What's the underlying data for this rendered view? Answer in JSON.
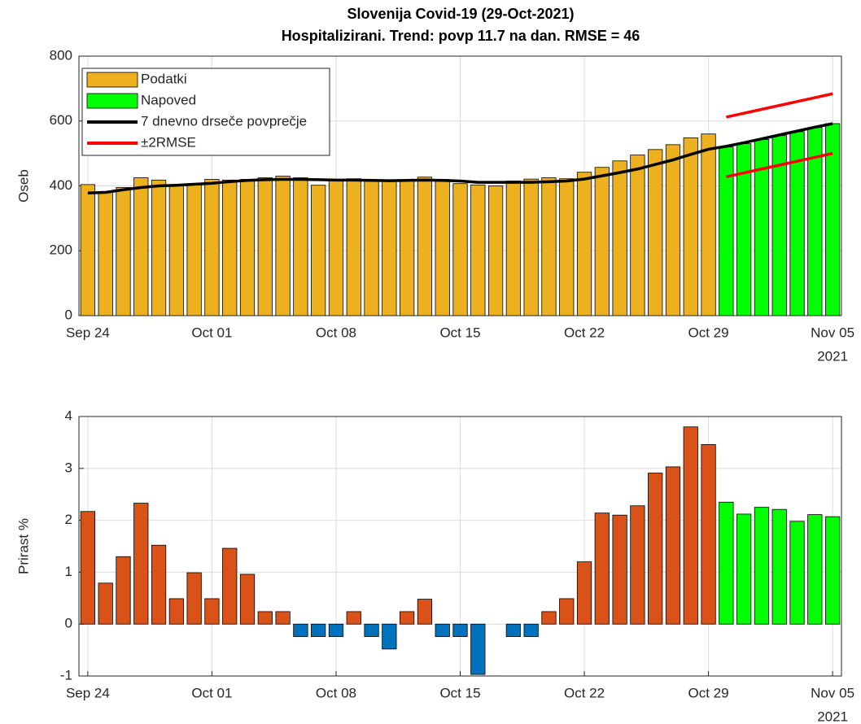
{
  "chart_data": [
    {
      "type": "bar",
      "title": "Slovenija Covid-19 (29-Oct-2021)",
      "subtitle": "Hospitalizirani. Trend: povp 11.7 na dan. RMSE = 46",
      "y_label": "Oseb",
      "x": [
        "2021-09-24",
        "2021-09-25",
        "2021-09-26",
        "2021-09-27",
        "2021-09-28",
        "2021-09-29",
        "2021-09-30",
        "2021-10-01",
        "2021-10-02",
        "2021-10-03",
        "2021-10-04",
        "2021-10-05",
        "2021-10-06",
        "2021-10-07",
        "2021-10-08",
        "2021-10-09",
        "2021-10-10",
        "2021-10-11",
        "2021-10-12",
        "2021-10-13",
        "2021-10-14",
        "2021-10-15",
        "2021-10-16",
        "2021-10-17",
        "2021-10-18",
        "2021-10-19",
        "2021-10-20",
        "2021-10-21",
        "2021-10-22",
        "2021-10-23",
        "2021-10-24",
        "2021-10-25",
        "2021-10-26",
        "2021-10-27",
        "2021-10-28",
        "2021-10-29",
        "2021-10-30",
        "2021-10-31",
        "2021-11-01",
        "2021-11-02",
        "2021-11-03",
        "2021-11-04",
        "2021-11-05"
      ],
      "xticks": [
        {
          "value": "2021-09-24",
          "label": "Sep 24"
        },
        {
          "value": "2021-10-01",
          "label": "Oct 01"
        },
        {
          "value": "2021-10-08",
          "label": "Oct 08"
        },
        {
          "value": "2021-10-15",
          "label": "Oct 15"
        },
        {
          "value": "2021-10-22",
          "label": "Oct 22"
        },
        {
          "value": "2021-10-29",
          "label": "Oct 29"
        },
        {
          "value": "2021-11-05",
          "label": "Nov 05"
        }
      ],
      "x_year_label": "2021",
      "ylim": [
        0,
        800
      ],
      "yticks": [
        0,
        200,
        400,
        600,
        800
      ],
      "grid": true,
      "legend": "northwest",
      "series": [
        {
          "name": "Podatki",
          "type": "bar",
          "color": "#edb120",
          "values": [
            404,
            381,
            395,
            425,
            418,
            404,
            405,
            420,
            418,
            420,
            425,
            430,
            425,
            402,
            418,
            422,
            418,
            415,
            416,
            427,
            420,
            407,
            403,
            400,
            415,
            421,
            425,
            422,
            442,
            457,
            477,
            495,
            512,
            527,
            548,
            560,
            null,
            null,
            null,
            null,
            null,
            null,
            null
          ]
        },
        {
          "name": "Napoved",
          "type": "bar",
          "color": "#00ff00",
          "values": [
            null,
            null,
            null,
            null,
            null,
            null,
            null,
            null,
            null,
            null,
            null,
            null,
            null,
            null,
            null,
            null,
            null,
            null,
            null,
            null,
            null,
            null,
            null,
            null,
            null,
            null,
            null,
            null,
            null,
            null,
            null,
            null,
            null,
            null,
            null,
            null,
            520,
            530,
            543,
            555,
            567,
            580,
            592
          ]
        },
        {
          "name": "7 dnevno drseče povprečje",
          "type": "line",
          "color": "#000000",
          "values": [
            378,
            380,
            388,
            395,
            400,
            402,
            405,
            408,
            413,
            417,
            419,
            420,
            420,
            419,
            418,
            418,
            417,
            416,
            417,
            418,
            417,
            415,
            411,
            411,
            411,
            411,
            413,
            415,
            421,
            431,
            441,
            452,
            466,
            480,
            497,
            513,
            522,
            533,
            545,
            557,
            569,
            581,
            592
          ]
        },
        {
          "name": "±2RMSE",
          "type": "line",
          "color": "#ff0000",
          "values": [
            null,
            null,
            null,
            null,
            null,
            null,
            null,
            null,
            null,
            null,
            null,
            null,
            null,
            null,
            null,
            null,
            null,
            null,
            null,
            null,
            null,
            null,
            null,
            null,
            null,
            null,
            null,
            null,
            null,
            null,
            null,
            null,
            null,
            null,
            null,
            null,
            612,
            624,
            636,
            648,
            660,
            672,
            684
          ]
        },
        {
          "type": "line",
          "color": "#ff0000",
          "values": [
            null,
            null,
            null,
            null,
            null,
            null,
            null,
            null,
            null,
            null,
            null,
            null,
            null,
            null,
            null,
            null,
            null,
            null,
            null,
            null,
            null,
            null,
            null,
            null,
            null,
            null,
            null,
            null,
            null,
            null,
            null,
            null,
            null,
            null,
            null,
            null,
            428,
            440,
            452,
            464,
            476,
            488,
            500
          ]
        }
      ]
    },
    {
      "type": "bar",
      "y_label": "Prirast %",
      "x": [
        "2021-09-24",
        "2021-09-25",
        "2021-09-26",
        "2021-09-27",
        "2021-09-28",
        "2021-09-29",
        "2021-09-30",
        "2021-10-01",
        "2021-10-02",
        "2021-10-03",
        "2021-10-04",
        "2021-10-05",
        "2021-10-06",
        "2021-10-07",
        "2021-10-08",
        "2021-10-09",
        "2021-10-10",
        "2021-10-11",
        "2021-10-12",
        "2021-10-13",
        "2021-10-14",
        "2021-10-15",
        "2021-10-16",
        "2021-10-17",
        "2021-10-18",
        "2021-10-19",
        "2021-10-20",
        "2021-10-21",
        "2021-10-22",
        "2021-10-23",
        "2021-10-24",
        "2021-10-25",
        "2021-10-26",
        "2021-10-27",
        "2021-10-28",
        "2021-10-29",
        "2021-10-30",
        "2021-10-31",
        "2021-11-01",
        "2021-11-02",
        "2021-11-03",
        "2021-11-04",
        "2021-11-05"
      ],
      "xticks": [
        {
          "value": "2021-09-24",
          "label": "Sep 24"
        },
        {
          "value": "2021-10-01",
          "label": "Oct 01"
        },
        {
          "value": "2021-10-08",
          "label": "Oct 08"
        },
        {
          "value": "2021-10-15",
          "label": "Oct 15"
        },
        {
          "value": "2021-10-22",
          "label": "Oct 22"
        },
        {
          "value": "2021-10-29",
          "label": "Oct 29"
        },
        {
          "value": "2021-11-05",
          "label": "Nov 05"
        }
      ],
      "x_year_label": "2021",
      "ylim": [
        -1,
        4
      ],
      "yticks": [
        -1,
        0,
        1,
        2,
        3,
        4
      ],
      "grid": true,
      "series": [
        {
          "type": "bar",
          "color": "#d95319",
          "color_negative": "#0072bd",
          "values": [
            2.17,
            0.79,
            1.3,
            2.33,
            1.52,
            0.49,
            0.99,
            0.49,
            1.46,
            0.96,
            0.24,
            0.24,
            -0.24,
            -0.24,
            -0.24,
            0.24,
            -0.24,
            -0.48,
            0.24,
            0.48,
            -0.24,
            -0.24,
            -0.97,
            0,
            -0.24,
            -0.24,
            0.24,
            0.49,
            1.2,
            2.14,
            2.1,
            2.28,
            2.91,
            3.03,
            3.8,
            3.46,
            null,
            null,
            null,
            null,
            null,
            null,
            null
          ]
        },
        {
          "type": "bar",
          "color": "#00ff00",
          "values": [
            null,
            null,
            null,
            null,
            null,
            null,
            null,
            null,
            null,
            null,
            null,
            null,
            null,
            null,
            null,
            null,
            null,
            null,
            null,
            null,
            null,
            null,
            null,
            null,
            null,
            null,
            null,
            null,
            null,
            null,
            null,
            null,
            null,
            null,
            null,
            null,
            2.35,
            2.12,
            2.25,
            2.21,
            1.98,
            2.11,
            2.07
          ]
        }
      ]
    }
  ]
}
